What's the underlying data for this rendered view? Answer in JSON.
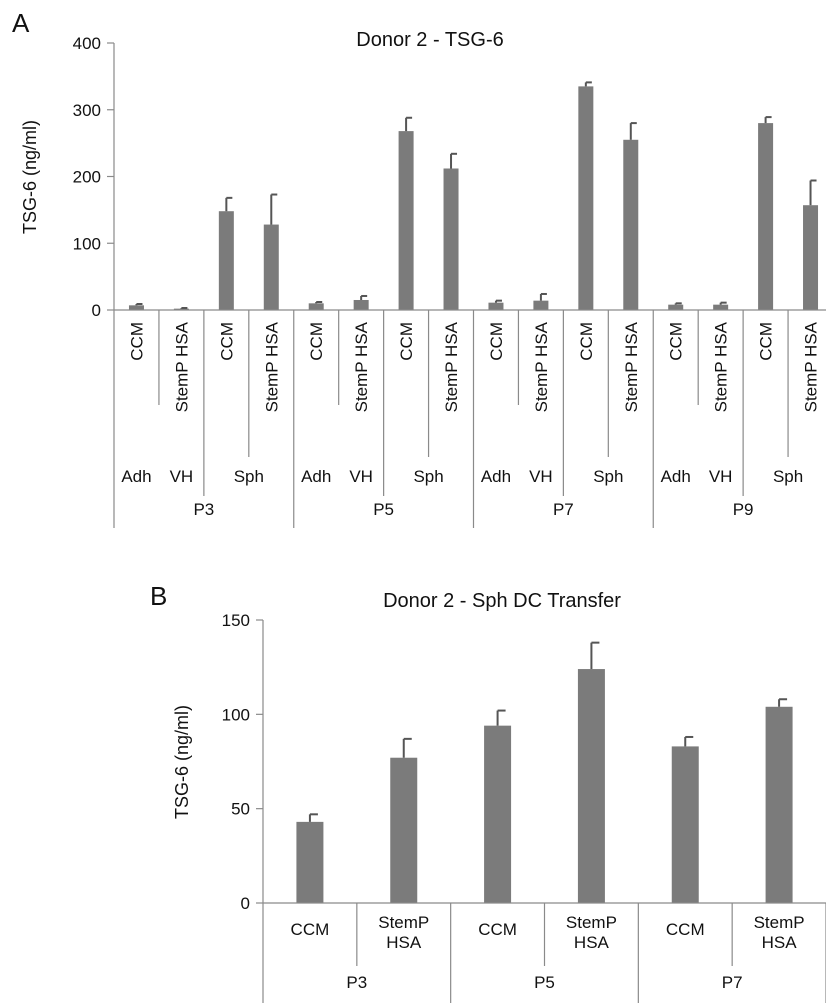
{
  "chart_data": [
    {
      "type": "bar",
      "panel_label": "A",
      "title": "Donor 2 - TSG-6",
      "ylabel": "TSG-6 (ng/ml)",
      "ylim": [
        0,
        400
      ],
      "yticks": [
        "0",
        "100",
        "200",
        "300",
        "400"
      ],
      "categories": [
        "CCM",
        "StemP HSA",
        "CCM",
        "StemP HSA",
        "CCM",
        "StemP HSA",
        "CCM",
        "StemP HSA",
        "CCM",
        "StemP HSA",
        "CCM",
        "StemP HSA",
        "CCM",
        "StemP HSA",
        "CCM",
        "StemP HSA"
      ],
      "values": [
        7,
        2,
        148,
        128,
        10,
        15,
        268,
        212,
        11,
        14,
        335,
        255,
        8,
        8,
        280,
        157
      ],
      "errors": [
        2,
        1,
        20,
        45,
        2,
        6,
        20,
        22,
        3,
        10,
        6,
        25,
        2,
        3,
        9,
        37
      ],
      "sub_groups": [
        {
          "label": "Adh",
          "span": 1
        },
        {
          "label": "VH",
          "span": 1
        },
        {
          "label": "Sph",
          "span": 2
        },
        {
          "label": "Adh",
          "span": 1
        },
        {
          "label": "VH",
          "span": 1
        },
        {
          "label": "Sph",
          "span": 2
        },
        {
          "label": "Adh",
          "span": 1
        },
        {
          "label": "VH",
          "span": 1
        },
        {
          "label": "Sph",
          "span": 2
        },
        {
          "label": "Adh",
          "span": 1
        },
        {
          "label": "VH",
          "span": 1
        },
        {
          "label": "Sph",
          "span": 2
        }
      ],
      "groups": [
        {
          "label": "P3",
          "span": 4
        },
        {
          "label": "P5",
          "span": 4
        },
        {
          "label": "P7",
          "span": 4
        },
        {
          "label": "P9",
          "span": 4
        }
      ],
      "grid": false,
      "bar_color": "#7b7b7b"
    },
    {
      "type": "bar",
      "panel_label": "B",
      "title": "Donor 2 - Sph DC Transfer",
      "ylabel": "TSG-6 (ng/ml)",
      "ylim": [
        0,
        150
      ],
      "yticks": [
        "0",
        "50",
        "100",
        "150"
      ],
      "categories": [
        "CCM",
        "StemP HSA",
        "CCM",
        "StemP HSA",
        "CCM",
        "StemP HSA"
      ],
      "values": [
        43,
        77,
        94,
        124,
        83,
        104
      ],
      "errors": [
        4,
        10,
        8,
        14,
        5,
        4
      ],
      "groups": [
        {
          "label": "P3",
          "span": 2
        },
        {
          "label": "P5",
          "span": 2
        },
        {
          "label": "P7",
          "span": 2
        }
      ],
      "grid": false,
      "bar_color": "#7b7b7b"
    }
  ]
}
